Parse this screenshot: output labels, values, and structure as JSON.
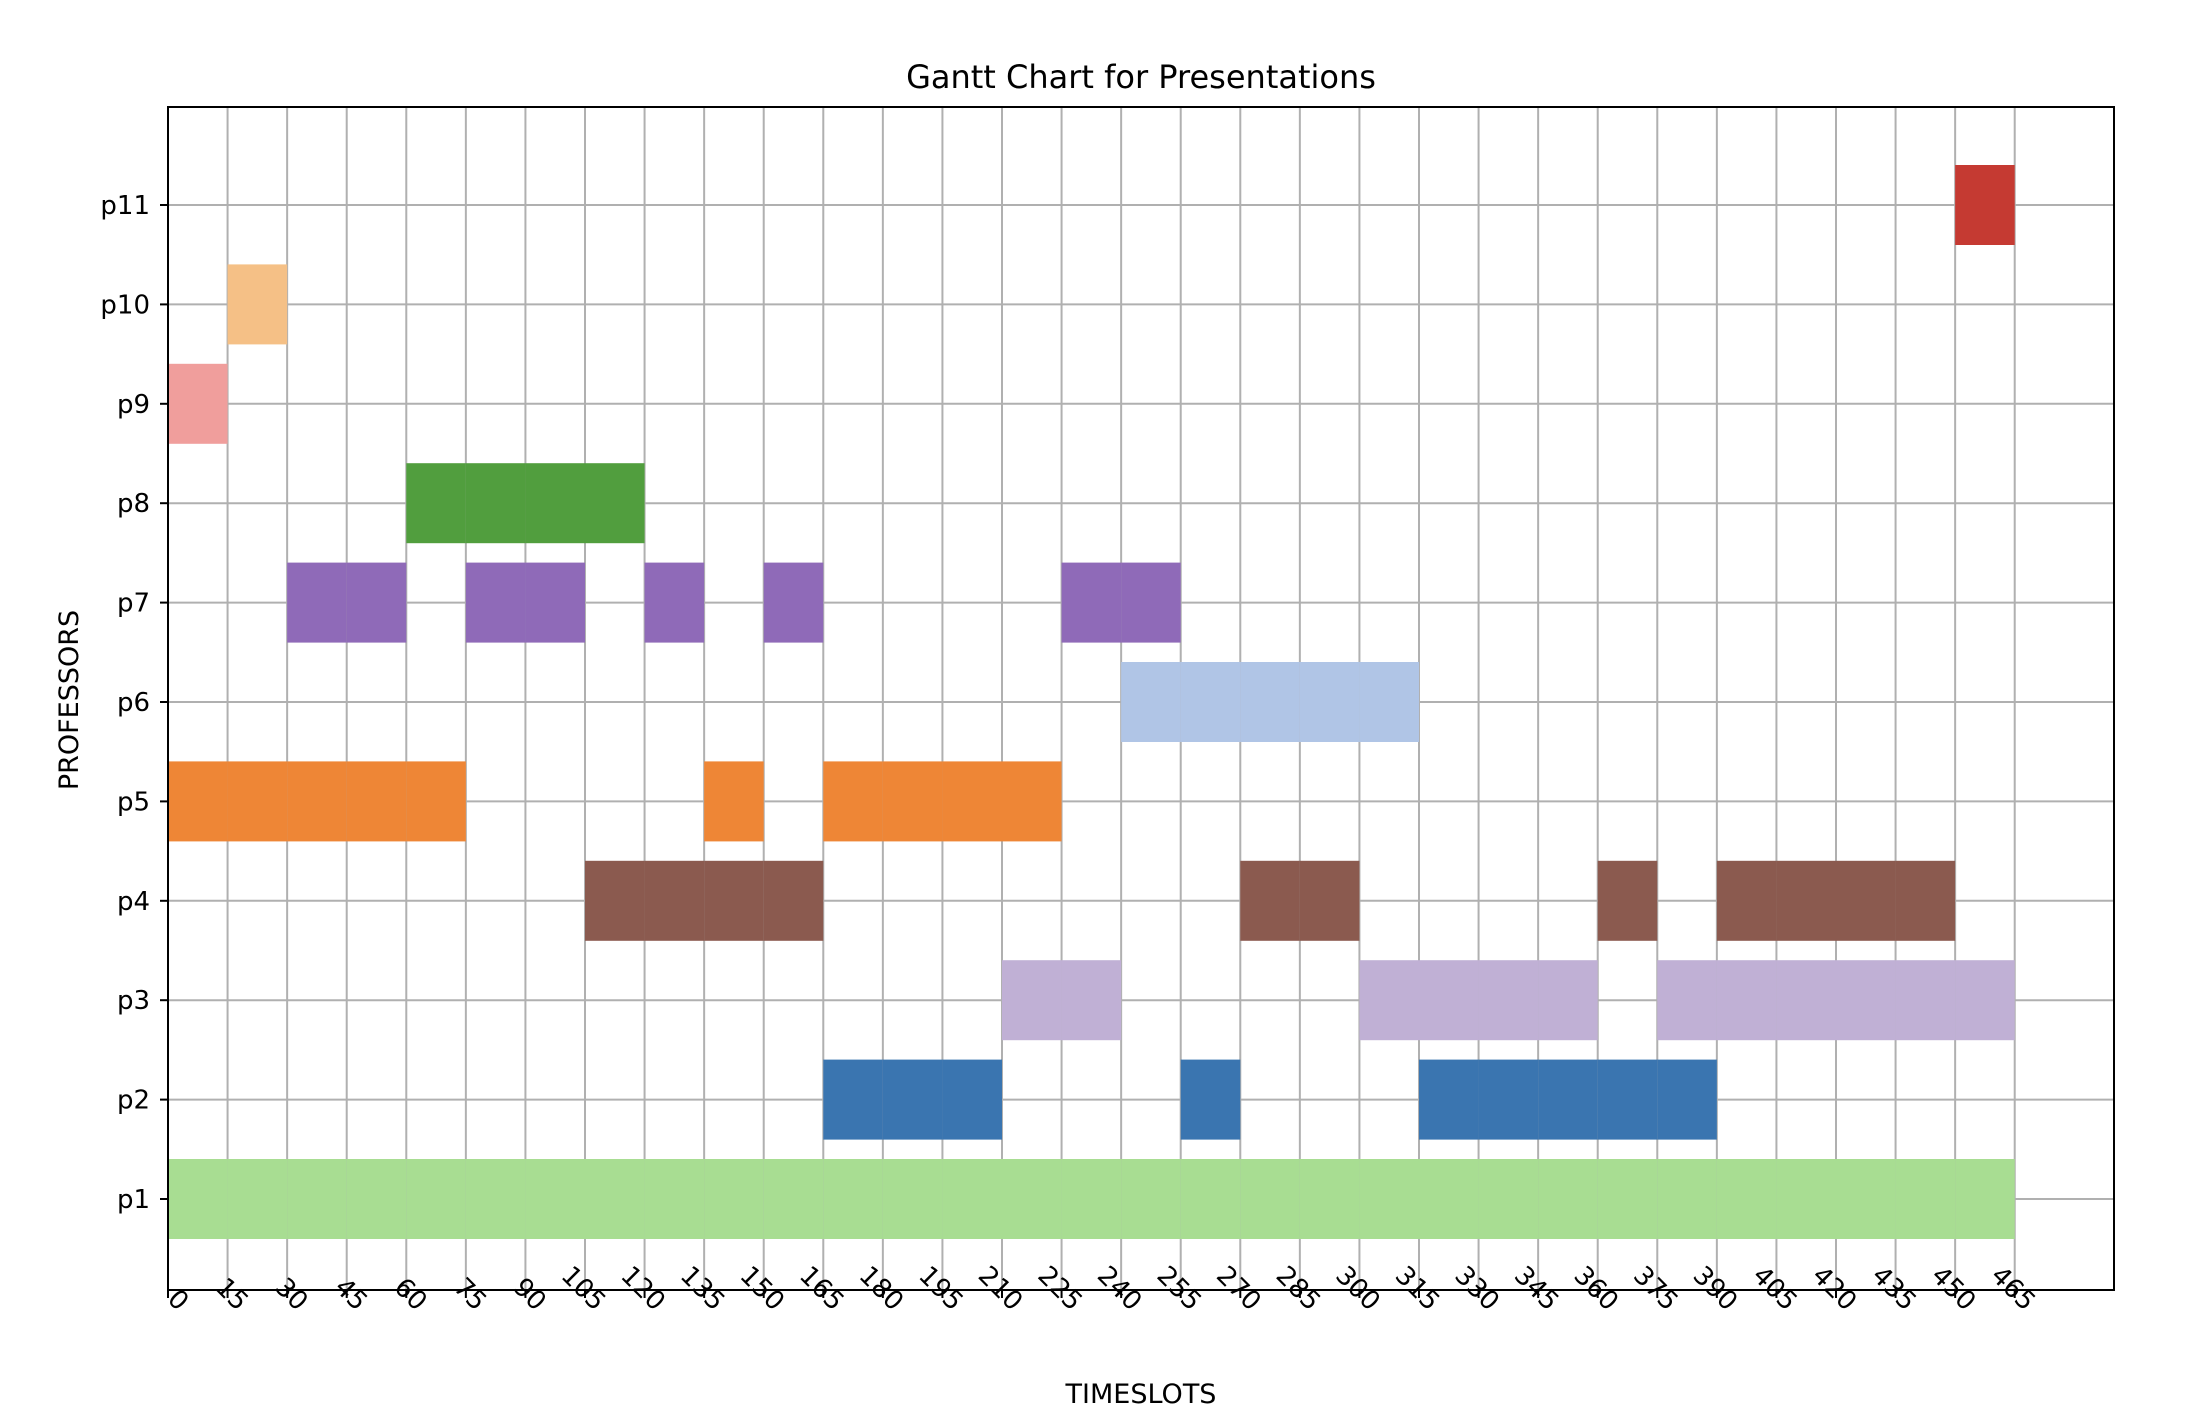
{
  "chart_data": {
    "type": "gantt",
    "title": "Gantt Chart for Presentations",
    "xlabel": "TIMESLOTS",
    "ylabel": "PROFESSORS",
    "xlim": [
      0,
      490
    ],
    "x_ticks": [
      0,
      15,
      30,
      45,
      60,
      75,
      90,
      105,
      120,
      135,
      150,
      165,
      180,
      195,
      210,
      225,
      240,
      255,
      270,
      285,
      300,
      315,
      330,
      345,
      360,
      375,
      390,
      405,
      420,
      435,
      450,
      465
    ],
    "categories": [
      "p1",
      "p2",
      "p3",
      "p4",
      "p5",
      "p6",
      "p7",
      "p8",
      "p9",
      "p10",
      "p11"
    ],
    "grid": true,
    "slot_length": 15,
    "series": [
      {
        "category": "p1",
        "color": "#a8dd92",
        "slots": [
          0,
          15,
          30,
          45,
          60,
          75,
          90,
          105,
          120,
          135,
          150,
          165,
          180,
          195,
          210,
          225,
          240,
          255,
          270,
          285,
          300,
          315,
          330,
          345,
          360,
          375,
          390,
          405,
          420,
          435,
          450
        ]
      },
      {
        "category": "p2",
        "color": "#3a75b0",
        "slots": [
          165,
          180,
          195,
          255,
          315,
          330,
          345,
          360,
          375
        ]
      },
      {
        "category": "p3",
        "color": "#c0b0d5",
        "slots": [
          210,
          225,
          300,
          315,
          330,
          345,
          375,
          390,
          405,
          420,
          435,
          450
        ]
      },
      {
        "category": "p4",
        "color": "#8b5a4f",
        "slots": [
          105,
          120,
          135,
          150,
          270,
          285,
          360,
          390,
          405,
          420,
          435
        ]
      },
      {
        "category": "p5",
        "color": "#ee8636",
        "slots": [
          0,
          15,
          30,
          45,
          60,
          135,
          165,
          180,
          195,
          210
        ]
      },
      {
        "category": "p6",
        "color": "#b0c5e6",
        "slots": [
          240,
          255,
          270,
          285,
          300
        ]
      },
      {
        "category": "p7",
        "color": "#8f6ab8",
        "slots": [
          30,
          45,
          75,
          90,
          120,
          150,
          225,
          240
        ]
      },
      {
        "category": "p8",
        "color": "#519e3e",
        "slots": [
          60,
          75,
          90,
          105
        ]
      },
      {
        "category": "p9",
        "color": "#f09e9c",
        "slots": [
          0
        ]
      },
      {
        "category": "p10",
        "color": "#f5c086",
        "slots": [
          15
        ]
      },
      {
        "category": "p11",
        "color": "#c53a32",
        "slots": [
          450
        ]
      }
    ]
  }
}
